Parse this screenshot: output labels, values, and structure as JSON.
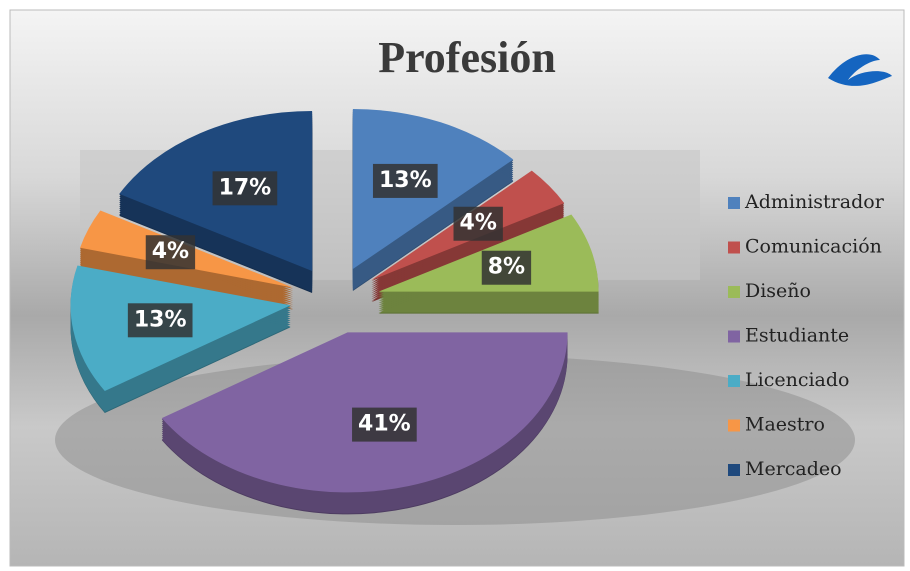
{
  "chart_data": {
    "type": "pie3d",
    "title": "Profesión",
    "categories": [
      "Administrador",
      "Comunicación",
      "Diseño",
      "Estudiante",
      "Licenciado",
      "Maestro",
      "Mercadeo"
    ],
    "values": [
      13,
      4,
      8,
      41,
      13,
      4,
      17
    ],
    "value_labels": [
      "13%",
      "4%",
      "8%",
      "41%",
      "13%",
      "4%",
      "17%"
    ],
    "colors": [
      "#4f81bd",
      "#c0504d",
      "#9bbb59",
      "#8064a2",
      "#4bacc6",
      "#f79646",
      "#1f497d"
    ],
    "legend": "right"
  }
}
